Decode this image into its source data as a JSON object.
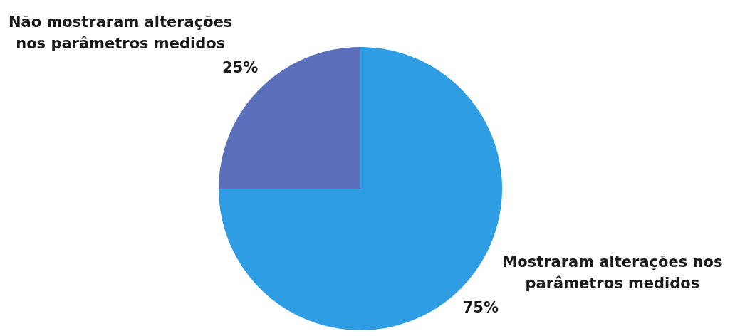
{
  "chart_data": {
    "type": "pie",
    "categories": [
      "Mostraram alterações nos parâmetros medidos",
      "Não mostraram alterações nos parâmetros medidos"
    ],
    "values": [
      75,
      25
    ],
    "colors": [
      "#2e9de4",
      "#5b6fbb"
    ],
    "value_labels": [
      "75%",
      "25%"
    ],
    "legend": false
  }
}
